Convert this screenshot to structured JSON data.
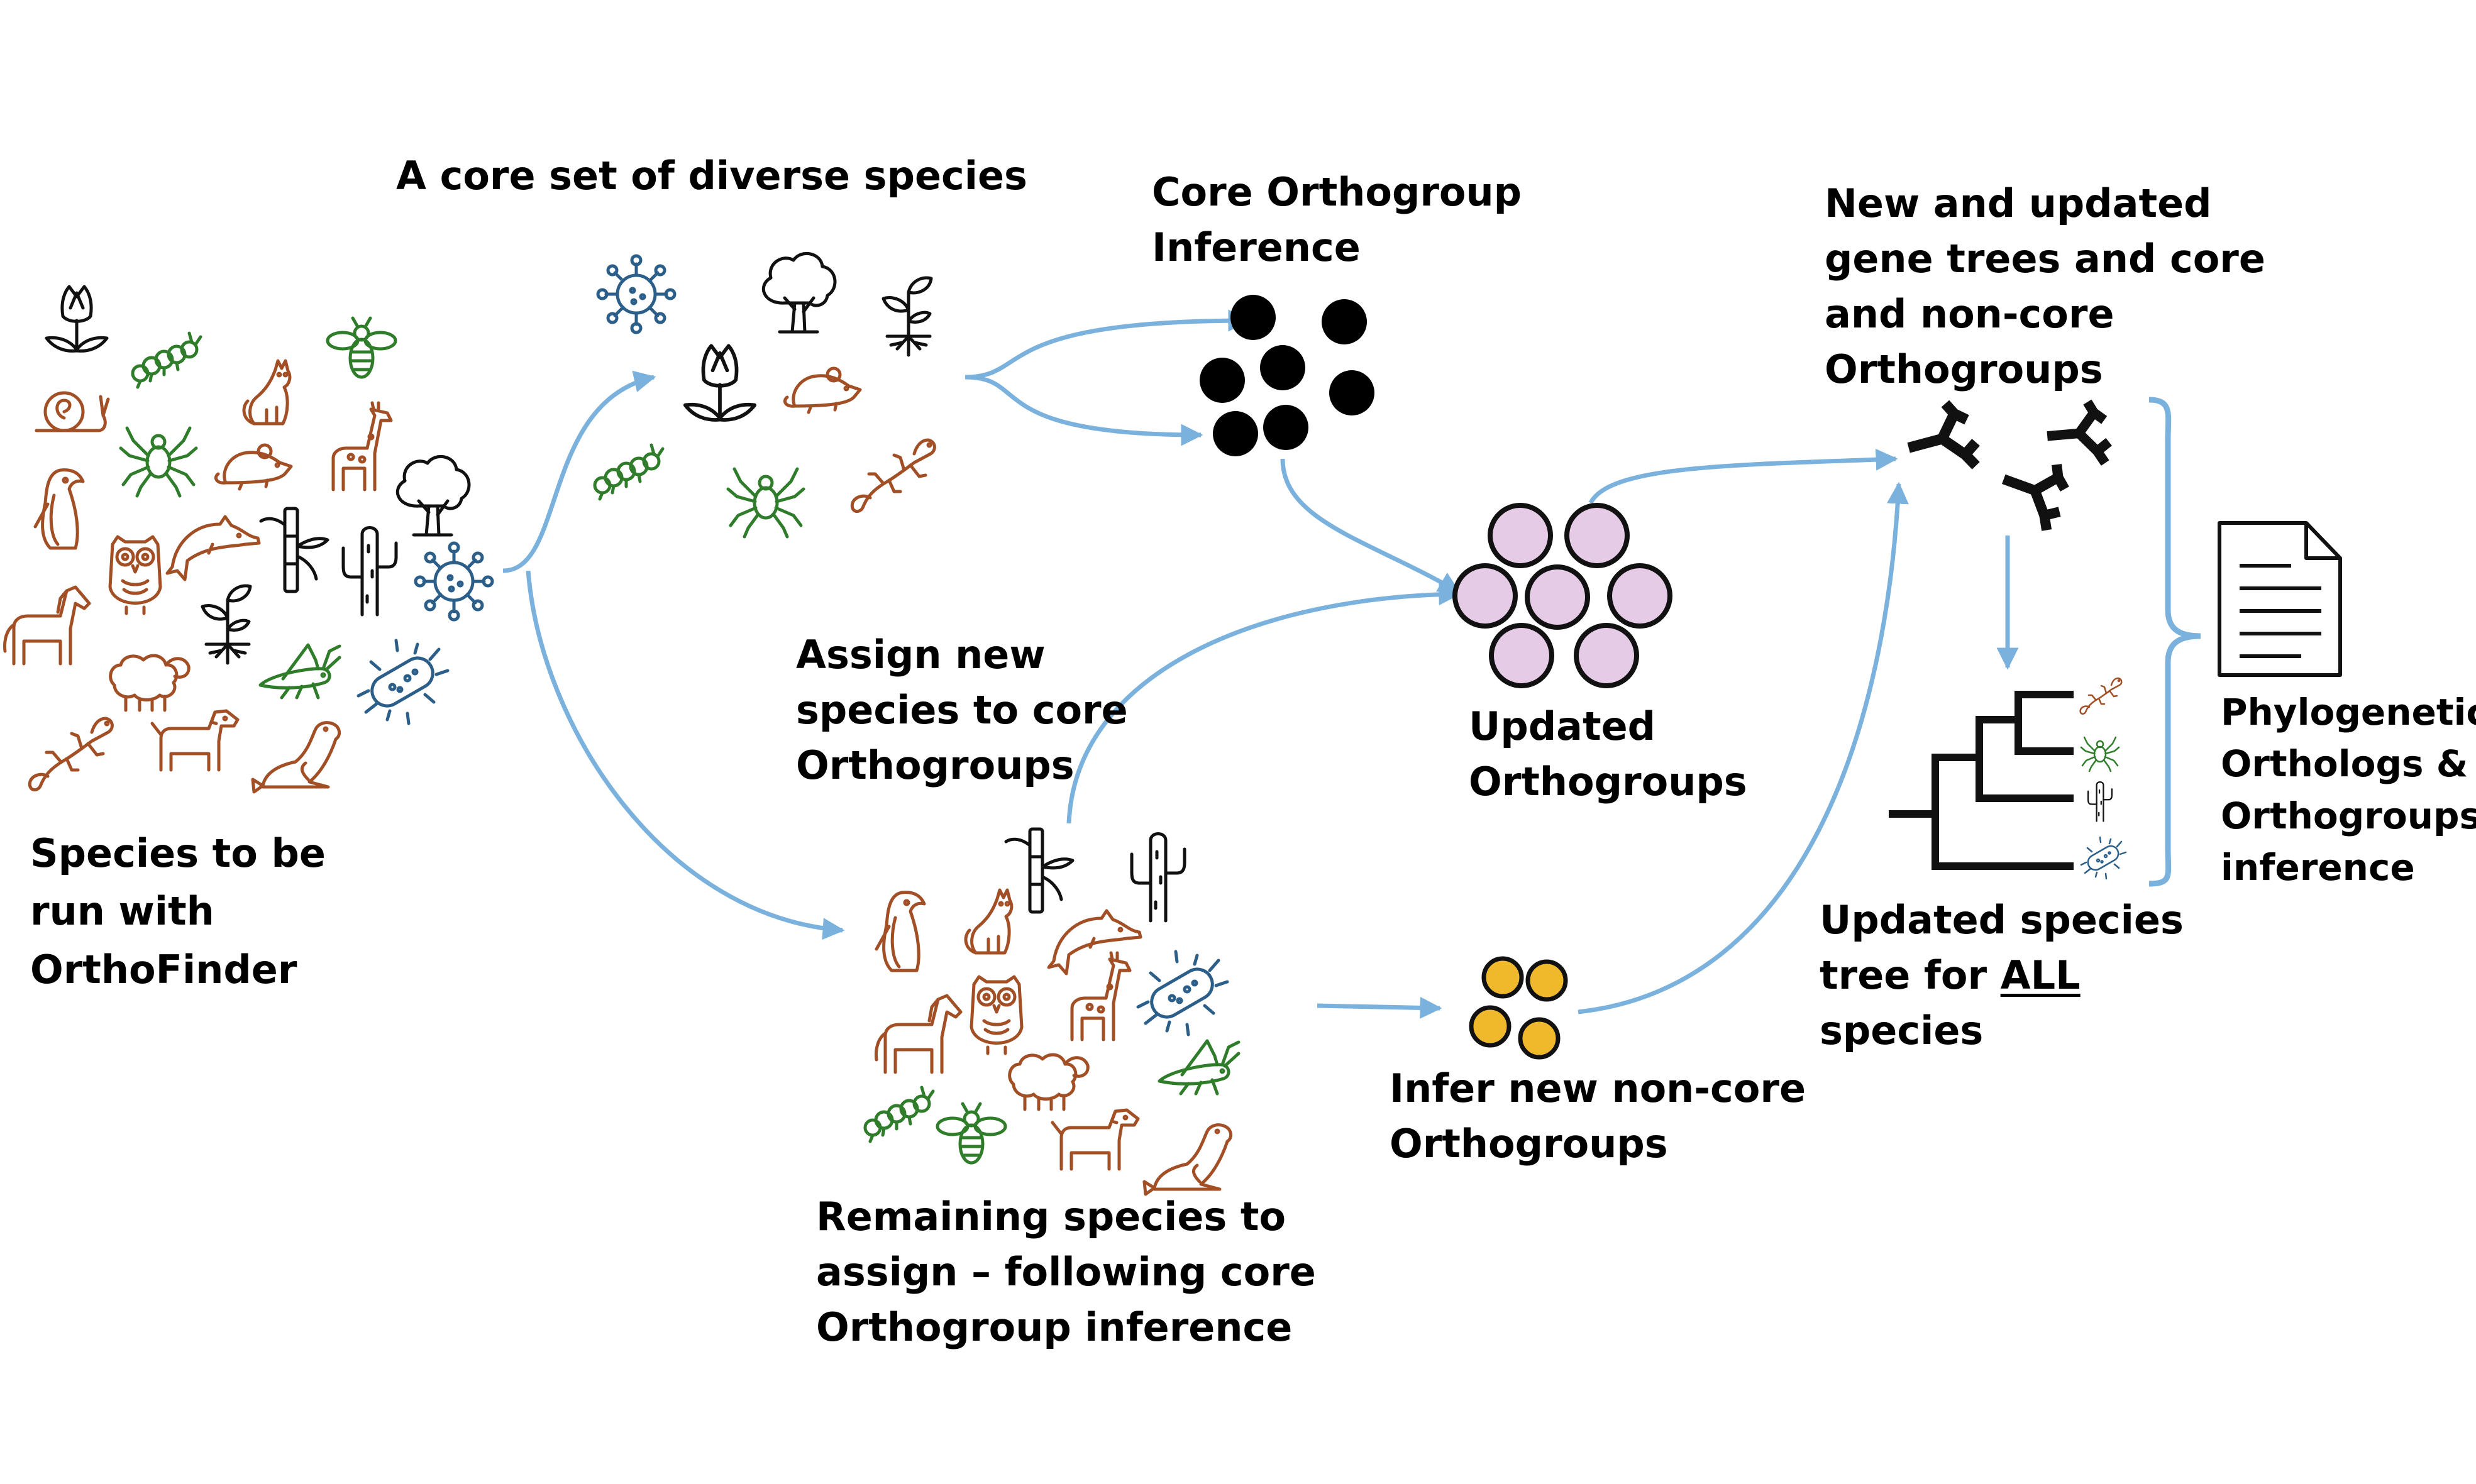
{
  "colors": {
    "arrow": "#7ab2dd",
    "mammal_brown": "#a24f25",
    "green": "#2f7d2a",
    "blue": "#2b5f8a",
    "black": "#111111",
    "orthogroup_pink": "#e6cbe6",
    "noncore_yellow": "#f0b92c"
  },
  "labels": {
    "species_to_run": [
      "Species to be",
      "run with",
      "OrthoFinder"
    ],
    "core_set": "A core set of diverse species",
    "core_inference": [
      "Core Orthogroup",
      "Inference"
    ],
    "assign_new": [
      "Assign new",
      "species to core",
      "Orthogroups"
    ],
    "updated_orthogroups": [
      "Updated",
      "Orthogroups"
    ],
    "remaining_species": [
      "Remaining species to",
      "assign – following core",
      "Orthogroup inference"
    ],
    "infer_noncore": [
      "Infer new non-core",
      "Orthogroups"
    ],
    "new_gene_trees": [
      "New and updated",
      "gene trees and core",
      "and non-core",
      "Orthogroups"
    ],
    "updated_species_tree": {
      "line1": "Updated species",
      "line2_prefix": "tree for ",
      "line2_emph": "ALL",
      "line3": "species"
    },
    "phylogenetic_output": [
      "Phylogenetic",
      "Orthologs &",
      "Orthogroups",
      "inference"
    ]
  },
  "icons": {
    "all_species": [
      "tulip-icon",
      "caterpillar-icon",
      "bee-icon",
      "snail-icon",
      "cat-icon",
      "spider-icon",
      "rat-icon",
      "giraffe-icon",
      "tree-icon",
      "penguin-icon",
      "owl-icon",
      "dolphin-icon",
      "bamboo-icon",
      "cactus-icon",
      "virus-icon",
      "horse-icon",
      "sapling-icon",
      "sheep-icon",
      "grasshopper-icon",
      "bacterium-icon",
      "lizard-icon",
      "dog-icon",
      "seal-icon"
    ],
    "core_species": [
      "virus-icon",
      "tree-icon",
      "sapling-icon",
      "tulip-icon",
      "rat-icon",
      "caterpillar-icon",
      "spider-icon",
      "lizard-icon"
    ],
    "remaining_species": [
      "bamboo-icon",
      "cactus-icon",
      "penguin-icon",
      "cat-icon",
      "dolphin-icon",
      "owl-icon",
      "giraffe-icon",
      "bacterium-icon",
      "horse-icon",
      "sheep-icon",
      "grasshopper-icon",
      "caterpillar-icon",
      "bee-icon",
      "dog-icon",
      "seal-icon"
    ],
    "species_tree_tips": [
      "lizard-icon",
      "spider-icon",
      "cactus-icon",
      "bacterium-icon"
    ],
    "document": "document-icon"
  }
}
